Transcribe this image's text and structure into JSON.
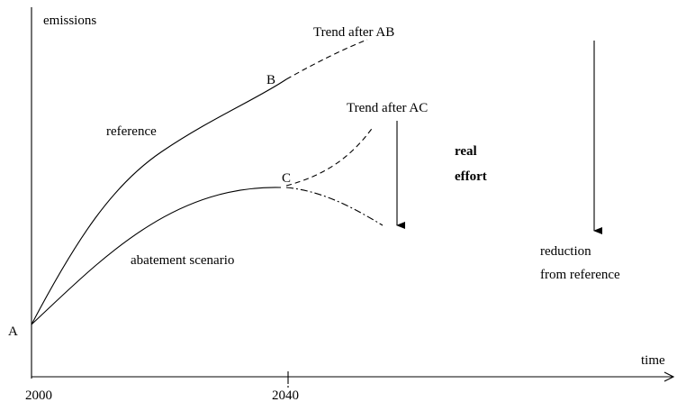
{
  "axes": {
    "y_label": "emissions",
    "x_label": "time",
    "x_start": "2000",
    "x_mark": "2040"
  },
  "points": {
    "a": "A",
    "b": "B",
    "c": "C"
  },
  "curves": {
    "reference": "reference",
    "abatement": "abatement scenario",
    "trend_ab": "Trend after AB",
    "trend_ac": "Trend after AC"
  },
  "notes": {
    "real_effort": [
      "real",
      "effort"
    ],
    "reduction": [
      "reduction",
      "from reference"
    ]
  }
}
